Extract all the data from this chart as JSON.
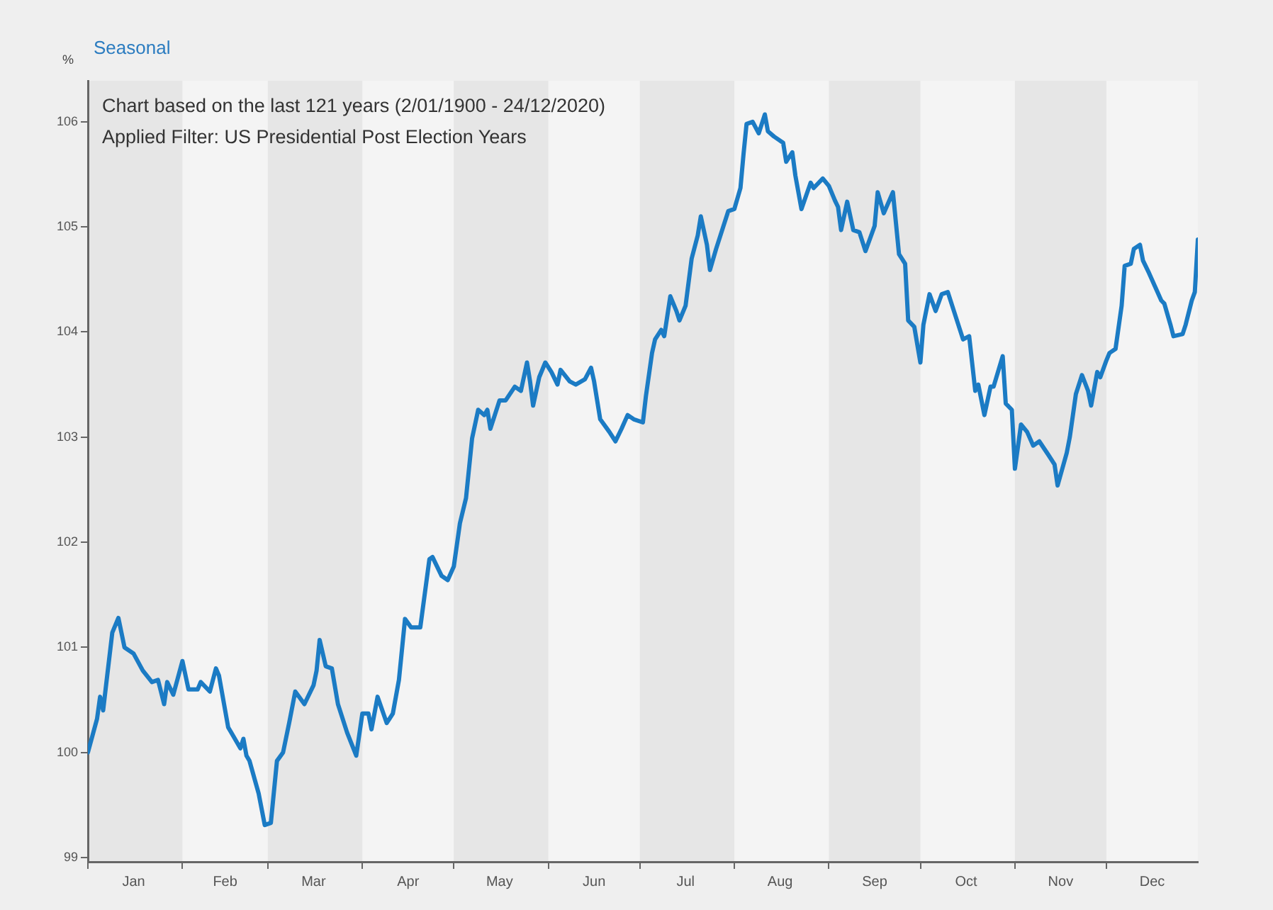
{
  "chart_data": {
    "type": "line",
    "title": "Seasonal",
    "ylabel": "%",
    "annotations": [
      "Chart based on the last 121 years (2/01/1900 - 24/12/2020)",
      "Applied Filter: US Presidential Post Election Years"
    ],
    "x": [
      "--01-01",
      "--01-04",
      "--01-05",
      "--01-06",
      "--01-07",
      "--01-09",
      "--01-11",
      "--01-13",
      "--01-16",
      "--01-19",
      "--01-22",
      "--01-24",
      "--01-26",
      "--01-27",
      "--01-29",
      "--02-01",
      "--02-03",
      "--02-06",
      "--02-07",
      "--02-10",
      "--02-12",
      "--02-13",
      "--02-16",
      "--02-17",
      "--02-20",
      "--02-21",
      "--02-22",
      "--02-23",
      "--02-26",
      "--02-28",
      "--03-02",
      "--03-04",
      "--03-06",
      "--03-08",
      "--03-10",
      "--03-13",
      "--03-16",
      "--03-17",
      "--03-18",
      "--03-20",
      "--03-22",
      "--03-24",
      "--03-27",
      "--03-30",
      "--04-01",
      "--04-03",
      "--04-04",
      "--04-06",
      "--04-09",
      "--04-11",
      "--04-13",
      "--04-15",
      "--04-17",
      "--04-20",
      "--04-23",
      "--04-24",
      "--04-27",
      "--04-29",
      "--05-01",
      "--05-03",
      "--05-05",
      "--05-07",
      "--05-09",
      "--05-11",
      "--05-12",
      "--05-13",
      "--05-16",
      "--05-18",
      "--05-21",
      "--05-23",
      "--05-25",
      "--05-26",
      "--05-27",
      "--05-29",
      "--05-31",
      "--06-02",
      "--06-04",
      "--06-05",
      "--06-08",
      "--06-10",
      "--06-13",
      "--06-15",
      "--06-16",
      "--06-18",
      "--06-21",
      "--06-23",
      "--06-25",
      "--06-27",
      "--06-29",
      "--07-02",
      "--07-03",
      "--07-05",
      "--07-06",
      "--07-08",
      "--07-09",
      "--07-11",
      "--07-13",
      "--07-14",
      "--07-16",
      "--07-18",
      "--07-20",
      "--07-21",
      "--07-23",
      "--07-24",
      "--07-26",
      "--07-28",
      "--07-30",
      "--08-01",
      "--08-03",
      "--08-04",
      "--08-05",
      "--08-07",
      "--08-09",
      "--08-11",
      "--08-12",
      "--08-14",
      "--08-17",
      "--08-18",
      "--08-20",
      "--08-21",
      "--08-23",
      "--08-26",
      "--08-27",
      "--08-30",
      "--09-01",
      "--09-03",
      "--09-04",
      "--09-05",
      "--09-07",
      "--09-09",
      "--09-11",
      "--09-13",
      "--09-16",
      "--09-17",
      "--09-19",
      "--09-22",
      "--09-24",
      "--09-26",
      "--09-27",
      "--09-29",
      "--10-01",
      "--10-02",
      "--10-04",
      "--10-06",
      "--10-08",
      "--10-10",
      "--10-12",
      "--10-15",
      "--10-17",
      "--10-19",
      "--10-20",
      "--10-22",
      "--10-24",
      "--10-25",
      "--10-28",
      "--10-29",
      "--10-31",
      "--11-01",
      "--11-03",
      "--11-05",
      "--11-07",
      "--11-09",
      "--11-12",
      "--11-14",
      "--11-15",
      "--11-18",
      "--11-19",
      "--11-21",
      "--11-23",
      "--11-25",
      "--11-26",
      "--11-28",
      "--11-29",
      "--12-01",
      "--12-02",
      "--12-04",
      "--12-06",
      "--12-07",
      "--12-09",
      "--12-10",
      "--12-12",
      "--12-13",
      "--12-15",
      "--12-17",
      "--12-19",
      "--12-20",
      "--12-22",
      "--12-23",
      "--12-26",
      "--12-27",
      "--12-29",
      "--12-30",
      "--12-31"
    ],
    "values": [
      100.0,
      100.32,
      100.53,
      100.4,
      100.65,
      101.14,
      101.28,
      101.0,
      100.94,
      100.78,
      100.67,
      100.69,
      100.46,
      100.67,
      100.55,
      100.87,
      100.6,
      100.6,
      100.67,
      100.58,
      100.8,
      100.73,
      100.24,
      100.19,
      100.04,
      100.13,
      99.97,
      99.92,
      99.61,
      99.31,
      99.33,
      99.92,
      100.0,
      100.28,
      100.58,
      100.46,
      100.64,
      100.78,
      101.07,
      100.82,
      100.8,
      100.46,
      100.19,
      99.97,
      100.37,
      100.37,
      100.22,
      100.53,
      100.28,
      100.37,
      100.69,
      101.27,
      101.19,
      101.19,
      101.84,
      101.86,
      101.68,
      101.64,
      101.77,
      102.18,
      102.42,
      102.99,
      103.26,
      103.21,
      103.26,
      103.08,
      103.35,
      103.35,
      103.48,
      103.44,
      103.71,
      103.53,
      103.3,
      103.57,
      103.71,
      103.62,
      103.5,
      103.64,
      103.53,
      103.5,
      103.55,
      103.66,
      103.53,
      103.17,
      103.05,
      102.96,
      103.08,
      103.21,
      103.17,
      103.14,
      103.39,
      103.8,
      103.93,
      104.02,
      103.96,
      104.34,
      104.2,
      104.11,
      104.25,
      104.7,
      104.92,
      105.1,
      104.83,
      104.59,
      104.79,
      104.97,
      105.15,
      105.17,
      105.37,
      105.69,
      105.98,
      106.0,
      105.89,
      106.07,
      105.91,
      105.86,
      105.8,
      105.62,
      105.71,
      105.49,
      105.17,
      105.42,
      105.37,
      105.46,
      105.39,
      105.25,
      105.19,
      104.97,
      105.24,
      104.97,
      104.95,
      104.77,
      105.01,
      105.33,
      105.13,
      105.33,
      104.74,
      104.65,
      104.11,
      104.05,
      103.71,
      104.07,
      104.36,
      104.2,
      104.36,
      104.38,
      104.2,
      103.93,
      103.96,
      103.44,
      103.5,
      103.21,
      103.48,
      103.48,
      103.77,
      103.32,
      103.26,
      102.7,
      103.12,
      103.05,
      102.92,
      102.96,
      102.83,
      102.74,
      102.54,
      102.85,
      103.0,
      103.41,
      103.59,
      103.44,
      103.3,
      103.62,
      103.57,
      103.73,
      103.8,
      103.84,
      104.25,
      104.63,
      104.65,
      104.79,
      104.83,
      104.68,
      104.56,
      104.43,
      104.3,
      104.27,
      104.07,
      103.96,
      103.98,
      104.07,
      104.3,
      104.38,
      104.88
    ],
    "color": "#1b7bc4",
    "line_style": "solid",
    "xlim": [
      "--01-01",
      "--12-31"
    ],
    "xticks": [
      {
        "value": "--01-01",
        "label": null
      },
      {
        "value": "--01-16",
        "label": "Jan"
      },
      {
        "value": "--02-01",
        "label": null
      },
      {
        "value": "--02-15",
        "label": "Feb"
      },
      {
        "value": "--03-01",
        "label": null
      },
      {
        "value": "--03-16",
        "label": "Mar"
      },
      {
        "value": "--04-01",
        "label": null
      },
      {
        "value": "--04-16",
        "label": "Apr"
      },
      {
        "value": "--05-01",
        "label": null
      },
      {
        "value": "--05-16",
        "label": "May"
      },
      {
        "value": "--06-01",
        "label": null
      },
      {
        "value": "--06-16",
        "label": "Jun"
      },
      {
        "value": "--07-01",
        "label": null
      },
      {
        "value": "--07-16",
        "label": "Jul"
      },
      {
        "value": "--08-01",
        "label": null
      },
      {
        "value": "--08-16",
        "label": "Aug"
      },
      {
        "value": "--09-01",
        "label": null
      },
      {
        "value": "--09-16",
        "label": "Sep"
      },
      {
        "value": "--10-01",
        "label": null
      },
      {
        "value": "--10-16",
        "label": "Oct"
      },
      {
        "value": "--11-01",
        "label": null
      },
      {
        "value": "--11-16",
        "label": "Nov"
      },
      {
        "value": "--12-01",
        "label": null
      },
      {
        "value": "--12-16",
        "label": "Dec"
      }
    ],
    "ylim": [
      98.96,
      106.39
    ],
    "yticks": [
      99,
      100,
      101,
      102,
      103,
      104,
      105,
      106
    ],
    "bands": [
      {
        "axis": "x",
        "from": "--01-01",
        "to": "--02-01",
        "color": "#e6e6e6"
      },
      {
        "axis": "x",
        "from": "--03-01",
        "to": "--04-01",
        "color": "#e6e6e6"
      },
      {
        "axis": "x",
        "from": "--05-01",
        "to": "--06-01",
        "color": "#e6e6e6"
      },
      {
        "axis": "x",
        "from": "--07-01",
        "to": "--08-01",
        "color": "#e6e6e6"
      },
      {
        "axis": "x",
        "from": "--09-01",
        "to": "--10-01",
        "color": "#e6e6e6"
      },
      {
        "axis": "x",
        "from": "--11-01",
        "to": "--12-01",
        "color": "#e6e6e6"
      }
    ],
    "legend": false
  }
}
